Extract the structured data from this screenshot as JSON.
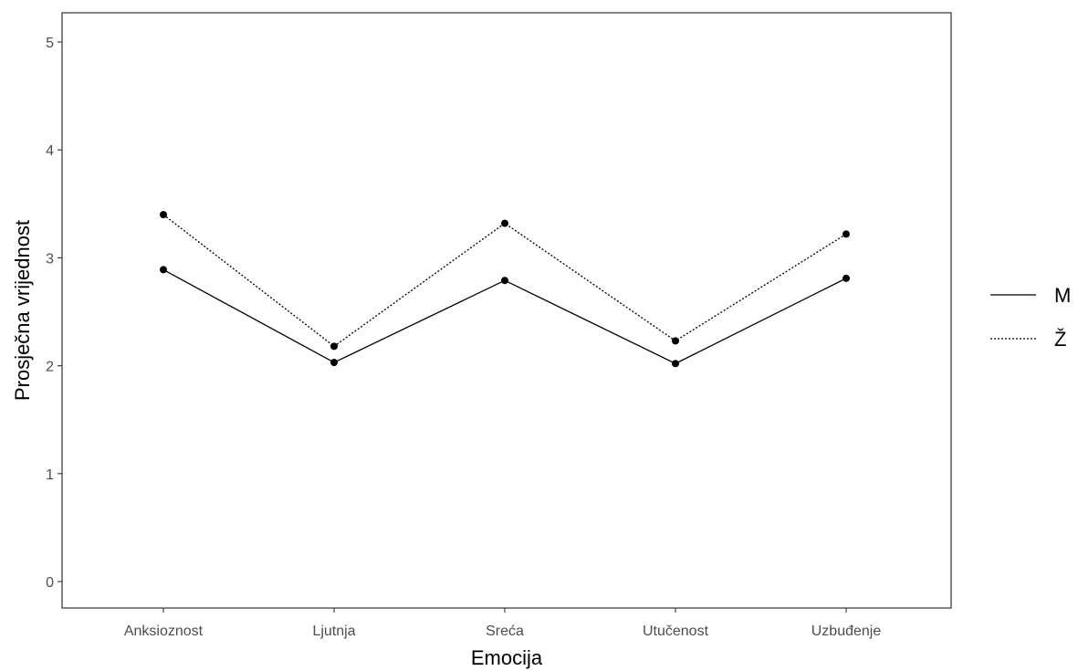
{
  "chart_data": {
    "type": "line",
    "categories": [
      "Anksioznost",
      "Ljutnja",
      "Sreća",
      "Utučenost",
      "Uzbuđenje"
    ],
    "series": [
      {
        "name": "M",
        "line_style": "solid",
        "values": [
          2.89,
          2.03,
          2.79,
          2.02,
          2.81
        ]
      },
      {
        "name": "Ž",
        "line_style": "dotted",
        "values": [
          3.4,
          2.18,
          3.32,
          2.23,
          3.22
        ]
      }
    ],
    "xlabel": "Emocija",
    "ylabel": "Prosječna vrijednost",
    "ylim": [
      0,
      5
    ],
    "yticks": [
      "0",
      "1",
      "2",
      "3",
      "4",
      "5"
    ],
    "grid": false,
    "legend_position": "right",
    "colors": {
      "line": "#000000",
      "point": "#000000",
      "panel_border": "#333333"
    }
  }
}
